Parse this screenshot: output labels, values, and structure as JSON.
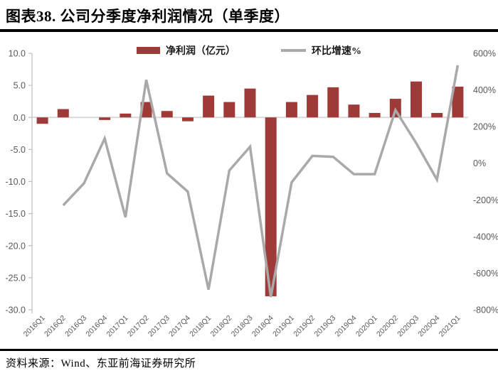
{
  "header": {
    "title": "图表38. 公司分季度净利润情况（单季度）"
  },
  "footer": {
    "source": "资料来源：Wind、东亚前海证券研究所"
  },
  "colors": {
    "bar": "#9E3B38",
    "line": "#A9A9A9",
    "zero_line": "#D9D9D9",
    "axis": "#BFBFBF",
    "tick_label": "#595959"
  },
  "chart_data": {
    "type": "bar",
    "subtype": "combo-bar-line-dual-axis",
    "title": "图表38. 公司分季度净利润情况（单季度）",
    "categories": [
      "2016Q1",
      "2016Q2",
      "2016Q3",
      "2016Q4",
      "2017Q1",
      "2017Q2",
      "2017Q3",
      "2017Q4",
      "2018Q1",
      "2018Q2",
      "2018Q3",
      "2018Q4",
      "2019Q1",
      "2019Q2",
      "2019Q3",
      "2019Q4",
      "2020Q1",
      "2020Q2",
      "2020Q3",
      "2020Q4",
      "2021Q1"
    ],
    "series": [
      {
        "name": "净利润（亿元）",
        "type": "bar",
        "axis": "left",
        "color": "#9E3B38",
        "values": [
          -1.0,
          1.3,
          0.0,
          -0.4,
          0.6,
          2.4,
          1.0,
          -0.6,
          3.4,
          2.4,
          4.5,
          -27.9,
          2.4,
          3.5,
          4.7,
          2.0,
          0.7,
          2.9,
          5.6,
          0.7,
          4.8
        ]
      },
      {
        "name": "环比增速%",
        "type": "line",
        "axis": "right",
        "color": "#A9A9A9",
        "values": [
          null,
          -230,
          -110,
          135,
          -295,
          455,
          -55,
          -155,
          -690,
          -40,
          90,
          -730,
          -105,
          40,
          35,
          -60,
          -60,
          290,
          110,
          -90,
          535
        ]
      }
    ],
    "left_axis": {
      "min": -30,
      "max": 10,
      "tick_labels": [
        "10.0",
        "5.0",
        "0.0",
        "-5.0",
        "-10.0",
        "-15.0",
        "-20.0",
        "-25.0",
        "-30.0"
      ]
    },
    "right_axis": {
      "min": -800,
      "max": 600,
      "tick_labels": [
        "600%",
        "400%",
        "200%",
        "0%",
        "-200%",
        "-400%",
        "-600%",
        "-800%"
      ]
    },
    "legend_position": "top-center",
    "grid": "zero-line-only",
    "xlabel": "",
    "ylabel_left": "净利润（亿元）",
    "ylabel_right": "环比增速%"
  }
}
